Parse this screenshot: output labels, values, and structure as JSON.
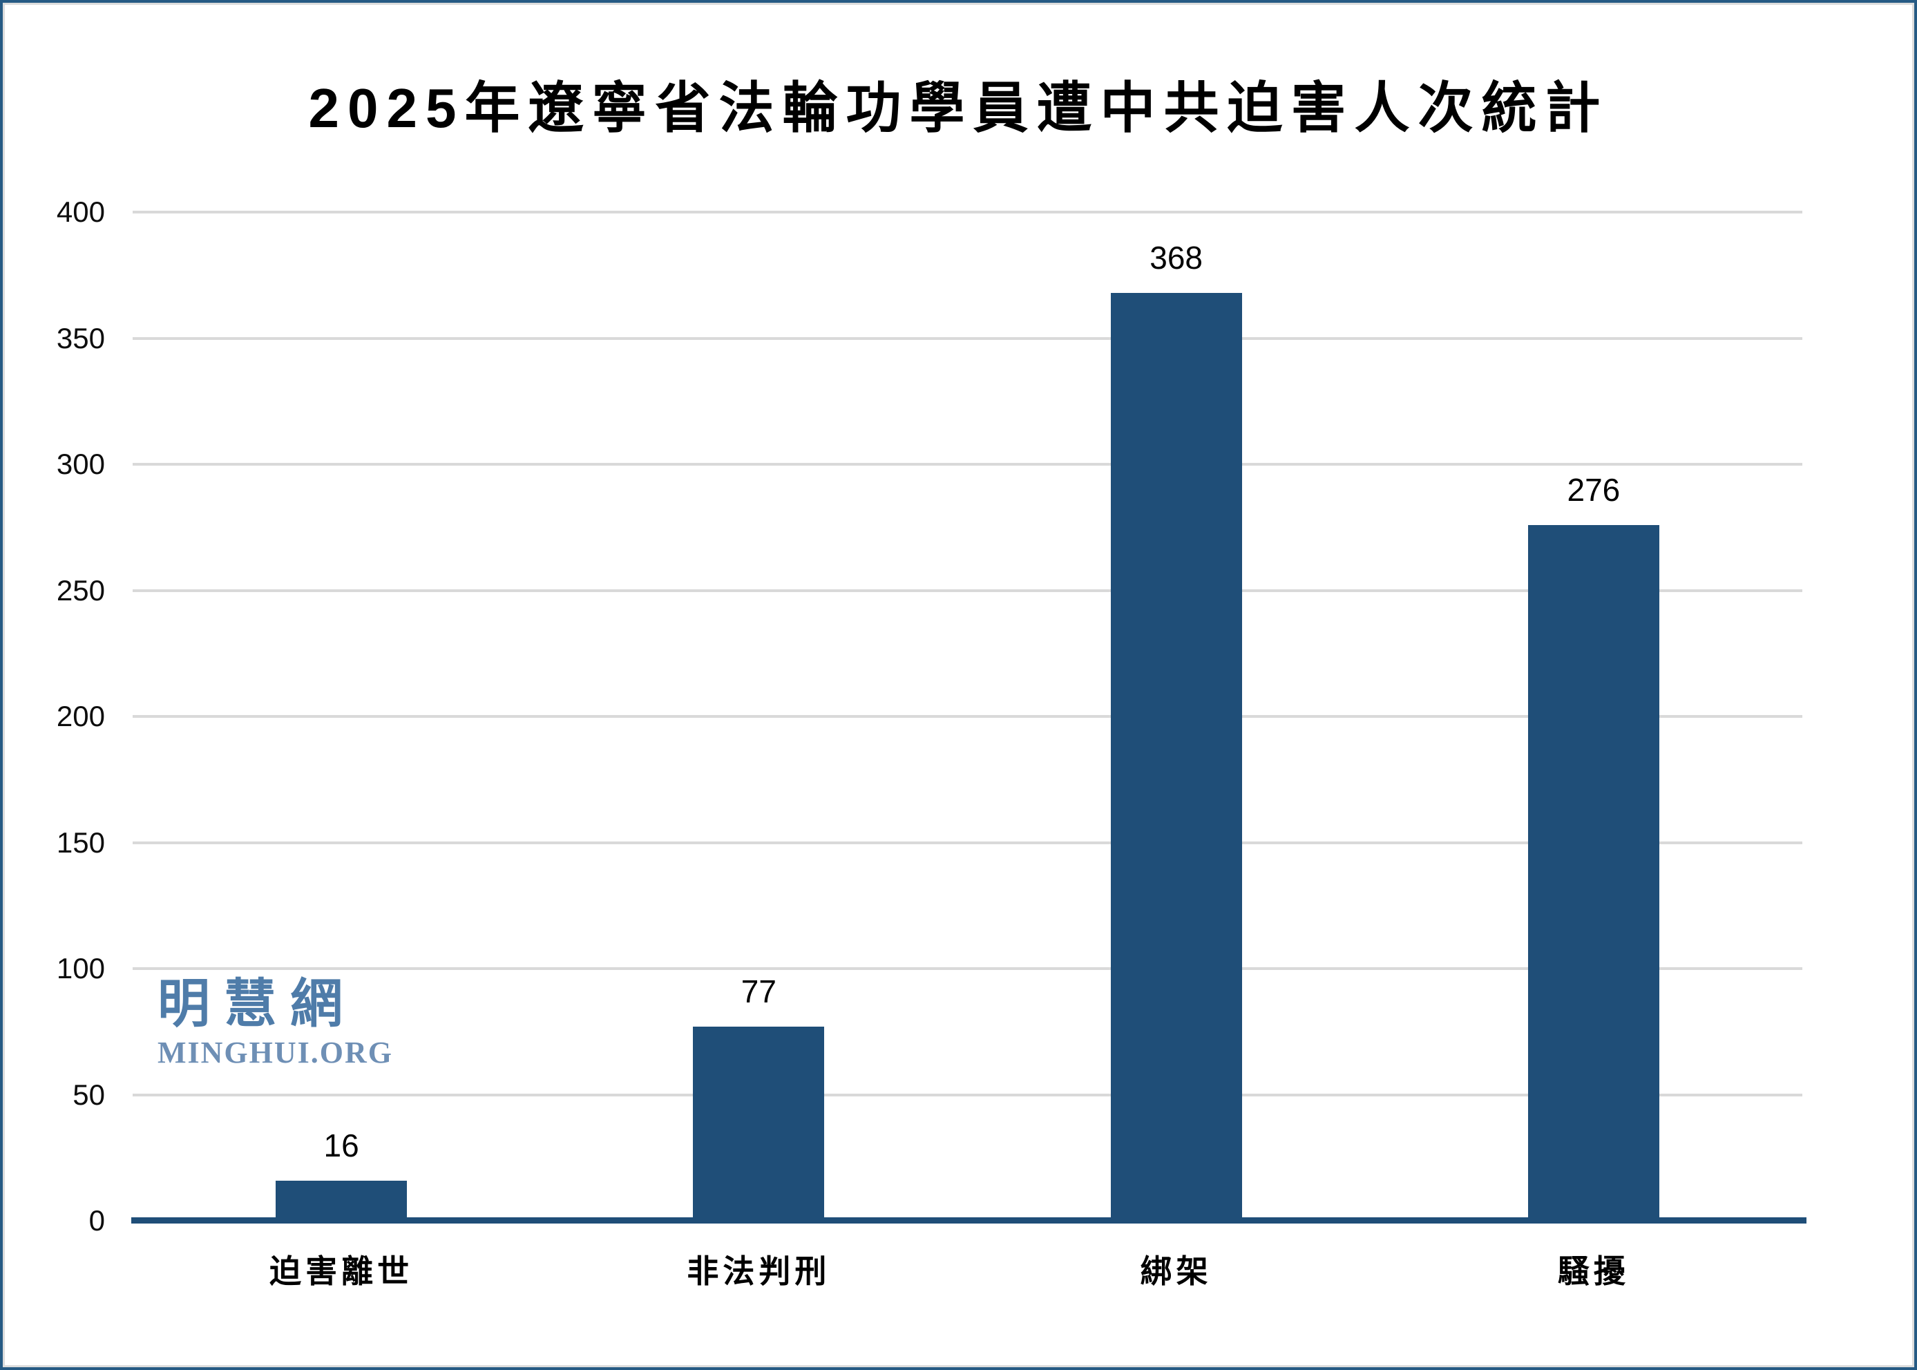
{
  "title": "2025年遼寧省法輪功學員遭中共迫害人次統計",
  "watermark": {
    "cjk": "明慧網",
    "latin": "MINGHUI.ORG"
  },
  "colors": {
    "bar": "#1f4e78",
    "axis_line": "#1f4e78",
    "gridline": "#d9d9d9",
    "frame_border": "#265a84",
    "watermark_cjk": "#4f7ca9",
    "watermark_latin": "#6e8fb5",
    "text": "#000000"
  },
  "chart_data": {
    "type": "bar",
    "title": "2025年遼寧省法輪功學員遭中共迫害人次統計",
    "categories": [
      "迫害離世",
      "非法判刑",
      "綁架",
      "騷擾"
    ],
    "values": [
      16,
      77,
      368,
      276
    ],
    "data_labels": [
      "16",
      "77",
      "368",
      "276"
    ],
    "xlabel": "",
    "ylabel": "",
    "ylim": [
      0,
      400
    ],
    "yticks": [
      0,
      50,
      100,
      150,
      200,
      250,
      300,
      350,
      400
    ],
    "grid": true,
    "legend_position": "none",
    "bar_color": "#1f4e78"
  }
}
